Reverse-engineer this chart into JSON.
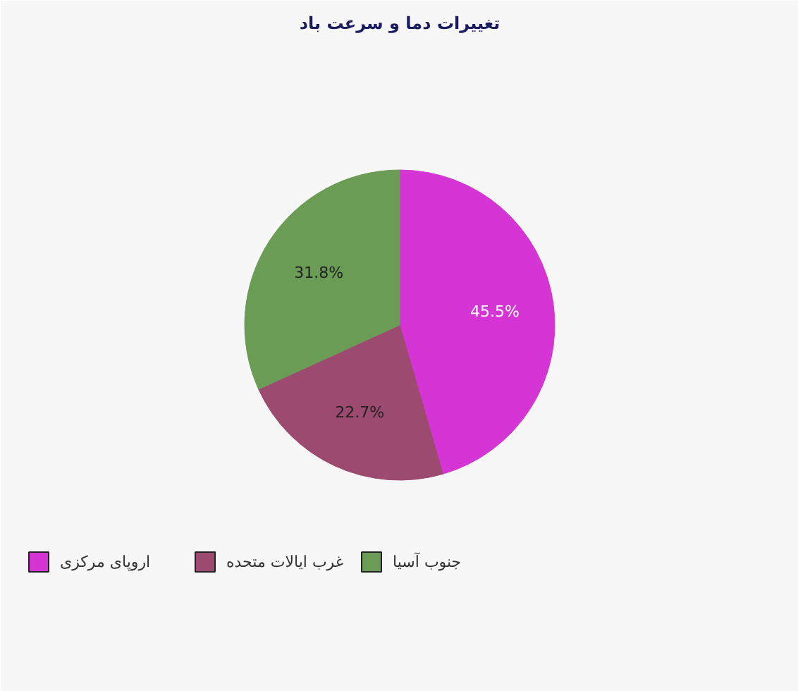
{
  "chart_data": {
    "type": "pie",
    "title": "تغییرات دما و سرعت باد",
    "categories": [
      "اروپای مرکزی",
      "غرب ایالات متحده",
      "جنوب آسیا"
    ],
    "values": [
      45.5,
      22.7,
      31.8
    ],
    "colors": [
      "#d535d5",
      "#9c4a70",
      "#6a9c55"
    ],
    "value_labels": [
      "45.5%",
      "22.7%",
      "31.8%"
    ],
    "legend": "bottom"
  }
}
